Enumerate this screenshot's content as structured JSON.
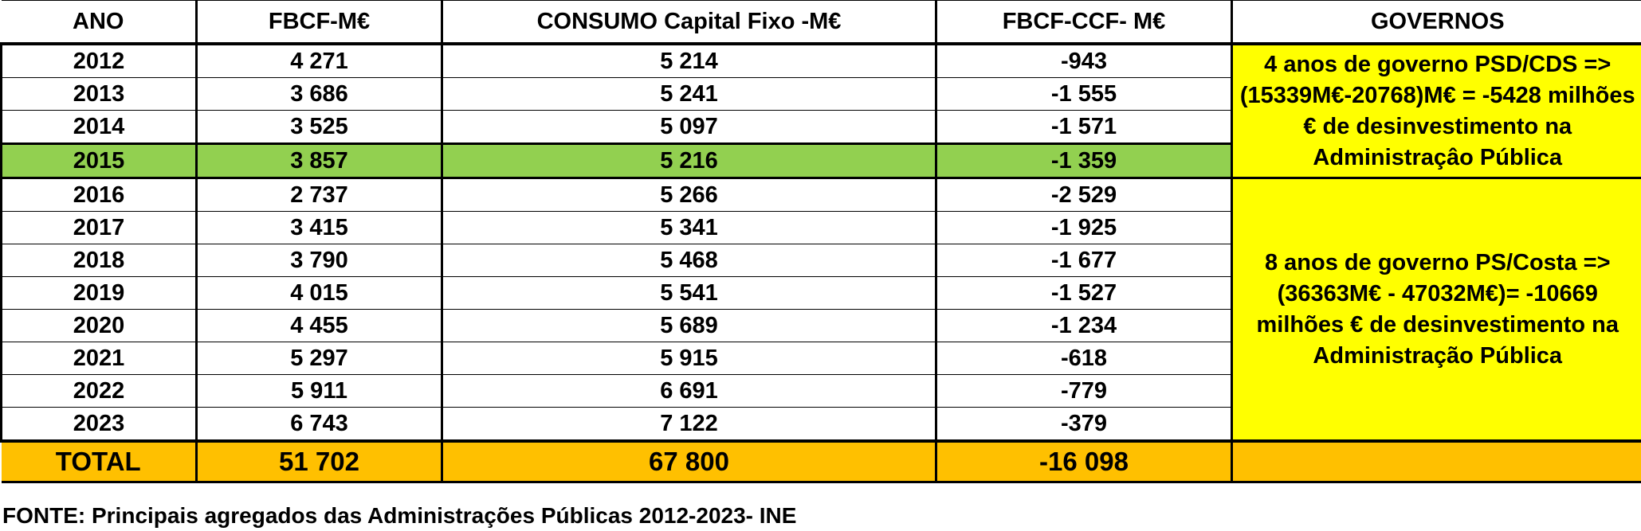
{
  "headers": {
    "ano": "ANO",
    "fbcf": "FBCF-M€",
    "consumo": "CONSUMO Capital Fixo -M€",
    "diff": "FBCF-CCF- M€",
    "governos": "GOVERNOS"
  },
  "rows": [
    {
      "ano": "2012",
      "fbcf": "4 271",
      "consumo": "5 214",
      "diff": "-943"
    },
    {
      "ano": "2013",
      "fbcf": "3 686",
      "consumo": "5 241",
      "diff": "-1 555"
    },
    {
      "ano": "2014",
      "fbcf": "3 525",
      "consumo": "5 097",
      "diff": "-1 571"
    },
    {
      "ano": "2015",
      "fbcf": "3 857",
      "consumo": "5 216",
      "diff": "-1 359"
    },
    {
      "ano": "2016",
      "fbcf": "2 737",
      "consumo": "5 266",
      "diff": "-2 529"
    },
    {
      "ano": "2017",
      "fbcf": "3 415",
      "consumo": "5 341",
      "diff": "-1 925"
    },
    {
      "ano": "2018",
      "fbcf": "3 790",
      "consumo": "5 468",
      "diff": "-1 677"
    },
    {
      "ano": "2019",
      "fbcf": "4 015",
      "consumo": "5 541",
      "diff": "-1 527"
    },
    {
      "ano": "2020",
      "fbcf": "4 455",
      "consumo": "5 689",
      "diff": "-1 234"
    },
    {
      "ano": "2021",
      "fbcf": "5 297",
      "consumo": "5 915",
      "diff": "-618"
    },
    {
      "ano": "2022",
      "fbcf": "5 911",
      "consumo": "6 691",
      "diff": "-779"
    },
    {
      "ano": "2023",
      "fbcf": "6 743",
      "consumo": "7 122",
      "diff": "-379"
    }
  ],
  "governos": {
    "psd_cds": "4 anos de governo PSD/CDS => (15339M€-20768)M€ = -5428 milhões € de desinvestimento na Administraçâo Pública",
    "ps_costa": "8 anos de governo PS/Costa => (36363M€ - 47032M€)= -10669 milhões € de desinvestimento na Administração Pública"
  },
  "total": {
    "label": "TOTAL",
    "fbcf": "51 702",
    "consumo": "67 800",
    "diff": "-16 098"
  },
  "source": "FONTE: Principais agregados das Administrações Públicas 2012-2023- INE",
  "colors": {
    "highlight_row": "#92d050",
    "governos_cell": "#ffff00",
    "total_row": "#ffc000"
  }
}
